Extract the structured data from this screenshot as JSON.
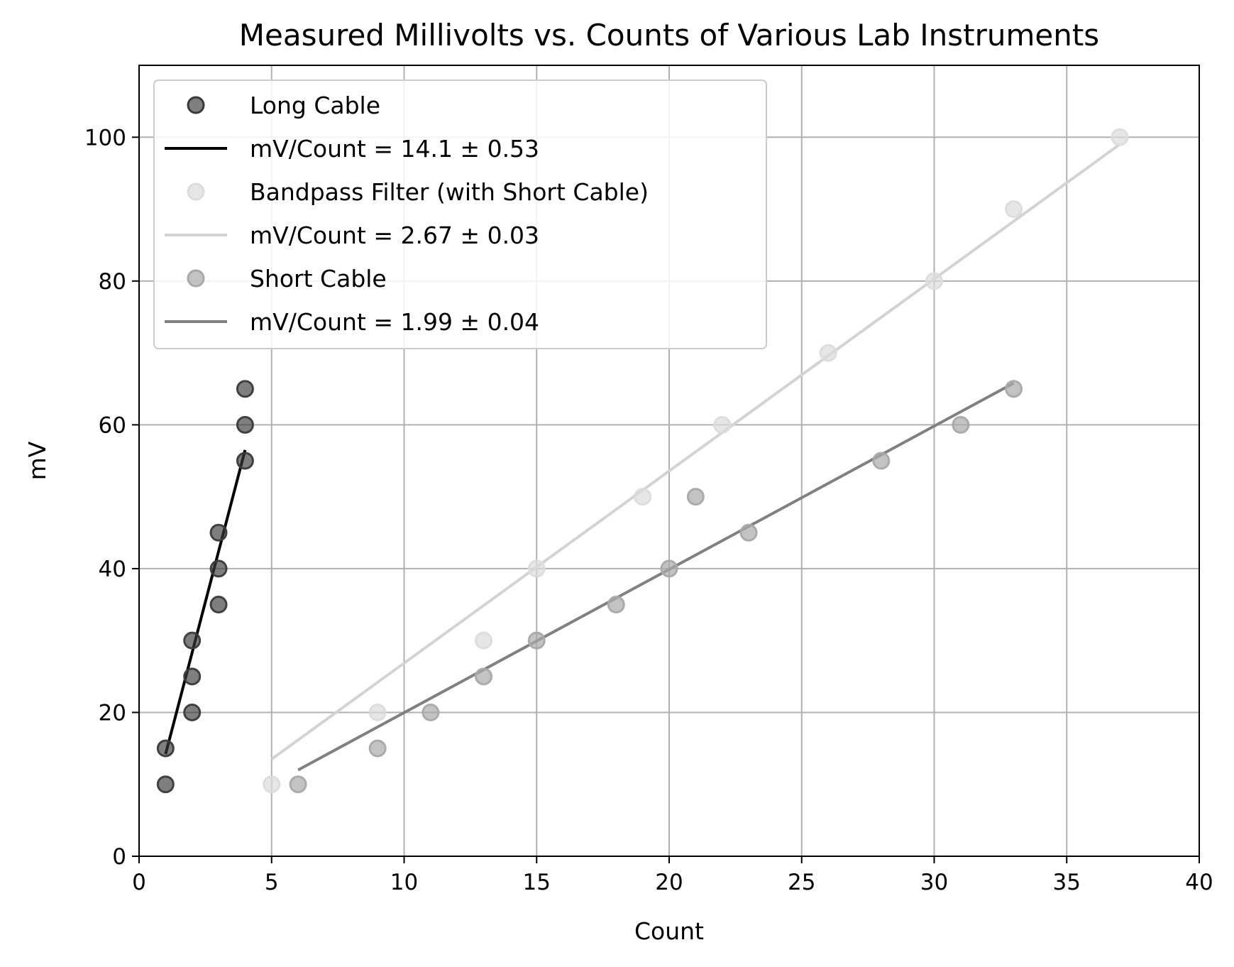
{
  "chart_data": {
    "type": "scatter",
    "title": "Measured Millivolts vs. Counts of Various Lab Instruments",
    "xlabel": "Count",
    "ylabel": "mV",
    "xlim": [
      0,
      40
    ],
    "ylim": [
      0,
      110
    ],
    "xticks": [
      0,
      5,
      10,
      15,
      20,
      25,
      30,
      35,
      40
    ],
    "yticks": [
      0,
      20,
      40,
      60,
      80,
      100
    ],
    "grid": true,
    "legend_position": "top-left",
    "series": [
      {
        "name": "Long Cable",
        "fit_label": "mV/Count = 14.1 ± 0.53",
        "point_color": "#3a3a3a",
        "line_color": "#000000",
        "points": [
          {
            "x": 1,
            "y": 10
          },
          {
            "x": 1,
            "y": 15
          },
          {
            "x": 2,
            "y": 20
          },
          {
            "x": 2,
            "y": 25
          },
          {
            "x": 2,
            "y": 30
          },
          {
            "x": 3,
            "y": 35
          },
          {
            "x": 3,
            "y": 40
          },
          {
            "x": 3,
            "y": 45
          },
          {
            "x": 4,
            "y": 55
          },
          {
            "x": 4,
            "y": 60
          },
          {
            "x": 4,
            "y": 65
          }
        ],
        "fit": {
          "x": [
            1,
            4
          ],
          "y": [
            14.2,
            56.5
          ]
        }
      },
      {
        "name": "Bandpass Filter (with Short Cable)",
        "fit_label": "mV/Count = 2.67 ± 0.03",
        "point_color": "#dcdcdc",
        "line_color": "#d3d3d3",
        "points": [
          {
            "x": 5,
            "y": 10
          },
          {
            "x": 9,
            "y": 20
          },
          {
            "x": 13,
            "y": 30
          },
          {
            "x": 15,
            "y": 40
          },
          {
            "x": 19,
            "y": 50
          },
          {
            "x": 22,
            "y": 60
          },
          {
            "x": 26,
            "y": 70
          },
          {
            "x": 30,
            "y": 80
          },
          {
            "x": 33,
            "y": 90
          },
          {
            "x": 37,
            "y": 100
          }
        ],
        "fit": {
          "x": [
            5,
            37
          ],
          "y": [
            13.5,
            99
          ]
        }
      },
      {
        "name": "Short Cable",
        "fit_label": "mV/Count = 1.99 ± 0.04",
        "point_color": "#a9a9a9",
        "line_color": "#808080",
        "points": [
          {
            "x": 6,
            "y": 10
          },
          {
            "x": 9,
            "y": 15
          },
          {
            "x": 11,
            "y": 20
          },
          {
            "x": 13,
            "y": 25
          },
          {
            "x": 15,
            "y": 30
          },
          {
            "x": 18,
            "y": 35
          },
          {
            "x": 20,
            "y": 40
          },
          {
            "x": 21,
            "y": 50
          },
          {
            "x": 23,
            "y": 45
          },
          {
            "x": 28,
            "y": 55
          },
          {
            "x": 31,
            "y": 60
          },
          {
            "x": 33,
            "y": 65
          }
        ],
        "fit": {
          "x": [
            6,
            33
          ],
          "y": [
            12,
            65.8
          ]
        }
      }
    ]
  }
}
